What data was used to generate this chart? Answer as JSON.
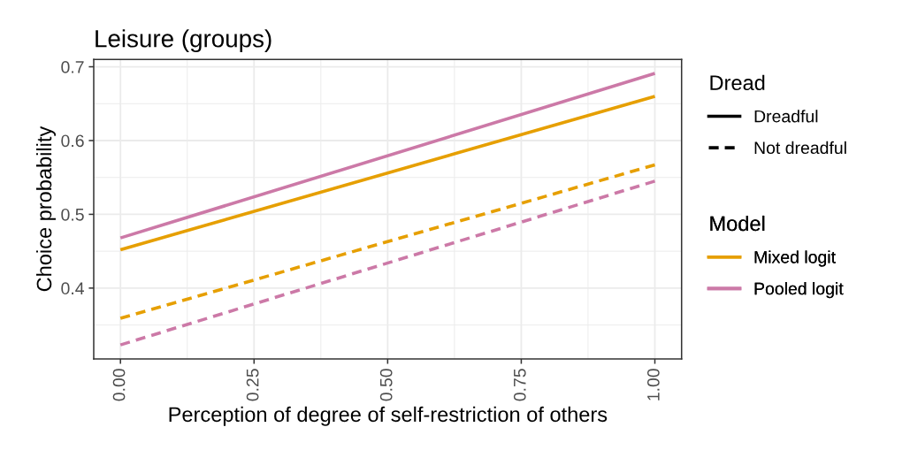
{
  "chart_data": {
    "type": "line",
    "title": "Leisure (groups)",
    "xlabel": "Perception of degree of self-restriction of others",
    "ylabel": "Choice probability",
    "x": [
      0,
      1
    ],
    "xlim": [
      -0.05,
      1.05
    ],
    "xticks": [
      {
        "value": 0,
        "label": "0.00"
      },
      {
        "value": 0.25,
        "label": "0.25"
      },
      {
        "value": 0.5,
        "label": "0.50"
      },
      {
        "value": 0.75,
        "label": "0.75"
      },
      {
        "value": 1,
        "label": "1.00"
      }
    ],
    "ylim": [
      0.304,
      0.71
    ],
    "yticks": [
      0.4,
      0.5,
      0.6,
      0.7
    ],
    "grid": true,
    "legend": "right",
    "legend_title": "Model",
    "marker": "none",
    "series": [
      {
        "name": "Mixed logit",
        "color": "#e69f00",
        "line_style": "solid",
        "values": [
          0.452,
          0.66
        ]
      },
      {
        "name": "Pooled logit",
        "color": "#cc79a7",
        "line_style": "solid",
        "values": [
          0.468,
          0.691
        ]
      },
      {
        "color": "#e69f00",
        "line_style": "dashed",
        "values": [
          0.359,
          0.567
        ]
      },
      {
        "color": "#cc79a7",
        "line_style": "dashed",
        "values": [
          0.323,
          0.545
        ]
      }
    ],
    "annotations": [
      "Dread",
      "Dreadful",
      "Not dreadful"
    ]
  }
}
